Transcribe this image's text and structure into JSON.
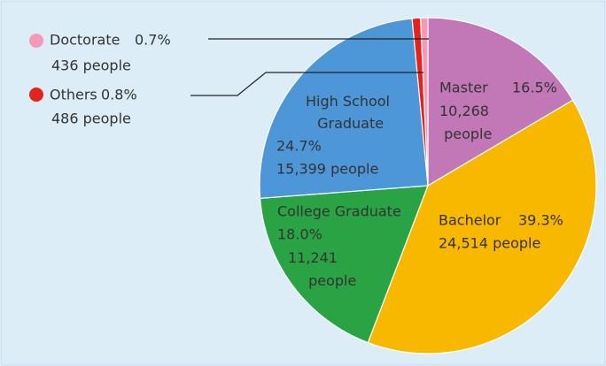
{
  "chart_data": {
    "type": "pie",
    "categories": [
      "Master",
      "Bachelor",
      "College Graduate",
      "High School Graduate",
      "Others",
      "Doctorate"
    ],
    "values": [
      16.5,
      39.3,
      18.0,
      24.7,
      0.8,
      0.7
    ],
    "value_labels": [
      "16.5%",
      "39.3%",
      "18.0%",
      "24.7%",
      "0.8%",
      "0.7%"
    ],
    "counts": [
      10268,
      24514,
      11241,
      15399,
      486,
      436
    ],
    "count_labels": [
      "10,268 people",
      "24,514 people",
      "11,241 people",
      "15,399 people",
      "486 people",
      "436 people"
    ],
    "colors": [
      "#c277b6",
      "#f8b800",
      "#2aa345",
      "#4d97d8",
      "#e2241c",
      "#f49ab8"
    ]
  }
}
